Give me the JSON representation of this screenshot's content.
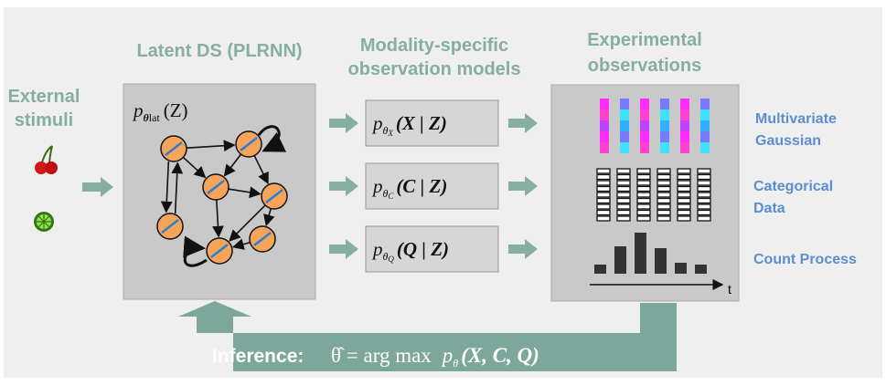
{
  "stimuli": {
    "line1": "External",
    "line2": "stimuli"
  },
  "latent": {
    "title": "Latent DS (PLRNN)",
    "formula": {
      "base": "p",
      "param": "θ",
      "sub": "lat",
      "args": "(Z)"
    }
  },
  "models": {
    "title_line1": "Modality-specific",
    "title_line2": "observation models",
    "items": [
      {
        "base": "p",
        "param": "θ",
        "sub": "X",
        "args": "(X | Z)"
      },
      {
        "base": "p",
        "param": "θ",
        "sub": "C",
        "args": "(C | Z)"
      },
      {
        "base": "p",
        "param": "θ",
        "sub": "Q",
        "args": "(Q | Z)"
      }
    ]
  },
  "observations": {
    "title_line1": "Experimental",
    "title_line2": "observations",
    "time_label": "t",
    "labels": [
      {
        "line1": "Multivariate",
        "line2": "Gaussian"
      },
      {
        "line1": "Categorical",
        "line2": "Data"
      },
      {
        "line1": "Count Process"
      }
    ]
  },
  "inference": {
    "label": "Inference:",
    "lhs": "θ̂ = arg max",
    "base": "p",
    "param": "θ",
    "args": "(X, C, Q)"
  }
}
